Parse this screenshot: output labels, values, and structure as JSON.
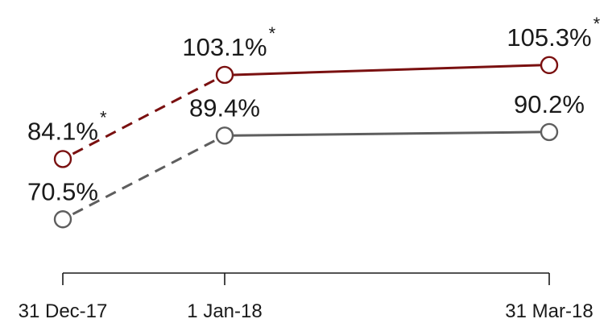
{
  "chart_data": {
    "type": "line",
    "title": "",
    "xlabel": "",
    "ylabel": "",
    "x": [
      "31 Dec-17",
      "1 Jan-18",
      "31 Mar-18"
    ],
    "x_tick_labels": [
      "31 Dec-17",
      "1 Jan-18",
      "31 Mar-18"
    ],
    "ylim": [
      60,
      110
    ],
    "grid": false,
    "legend": "none",
    "series": [
      {
        "values": [
          84.1,
          103.1,
          105.3
        ],
        "labels": [
          "84.1%",
          "103.1%",
          "105.3%"
        ],
        "annotations": [
          "*",
          "*",
          "*"
        ],
        "color": "#7a1010",
        "first_segment_style": "dashed",
        "marker": "open-circle"
      },
      {
        "values": [
          70.5,
          89.4,
          90.2
        ],
        "labels": [
          "70.5%",
          "89.4%",
          "90.2%"
        ],
        "annotations": [
          "",
          "",
          ""
        ],
        "color": "#5e5e5e",
        "first_segment_style": "dashed",
        "marker": "open-circle"
      }
    ]
  }
}
